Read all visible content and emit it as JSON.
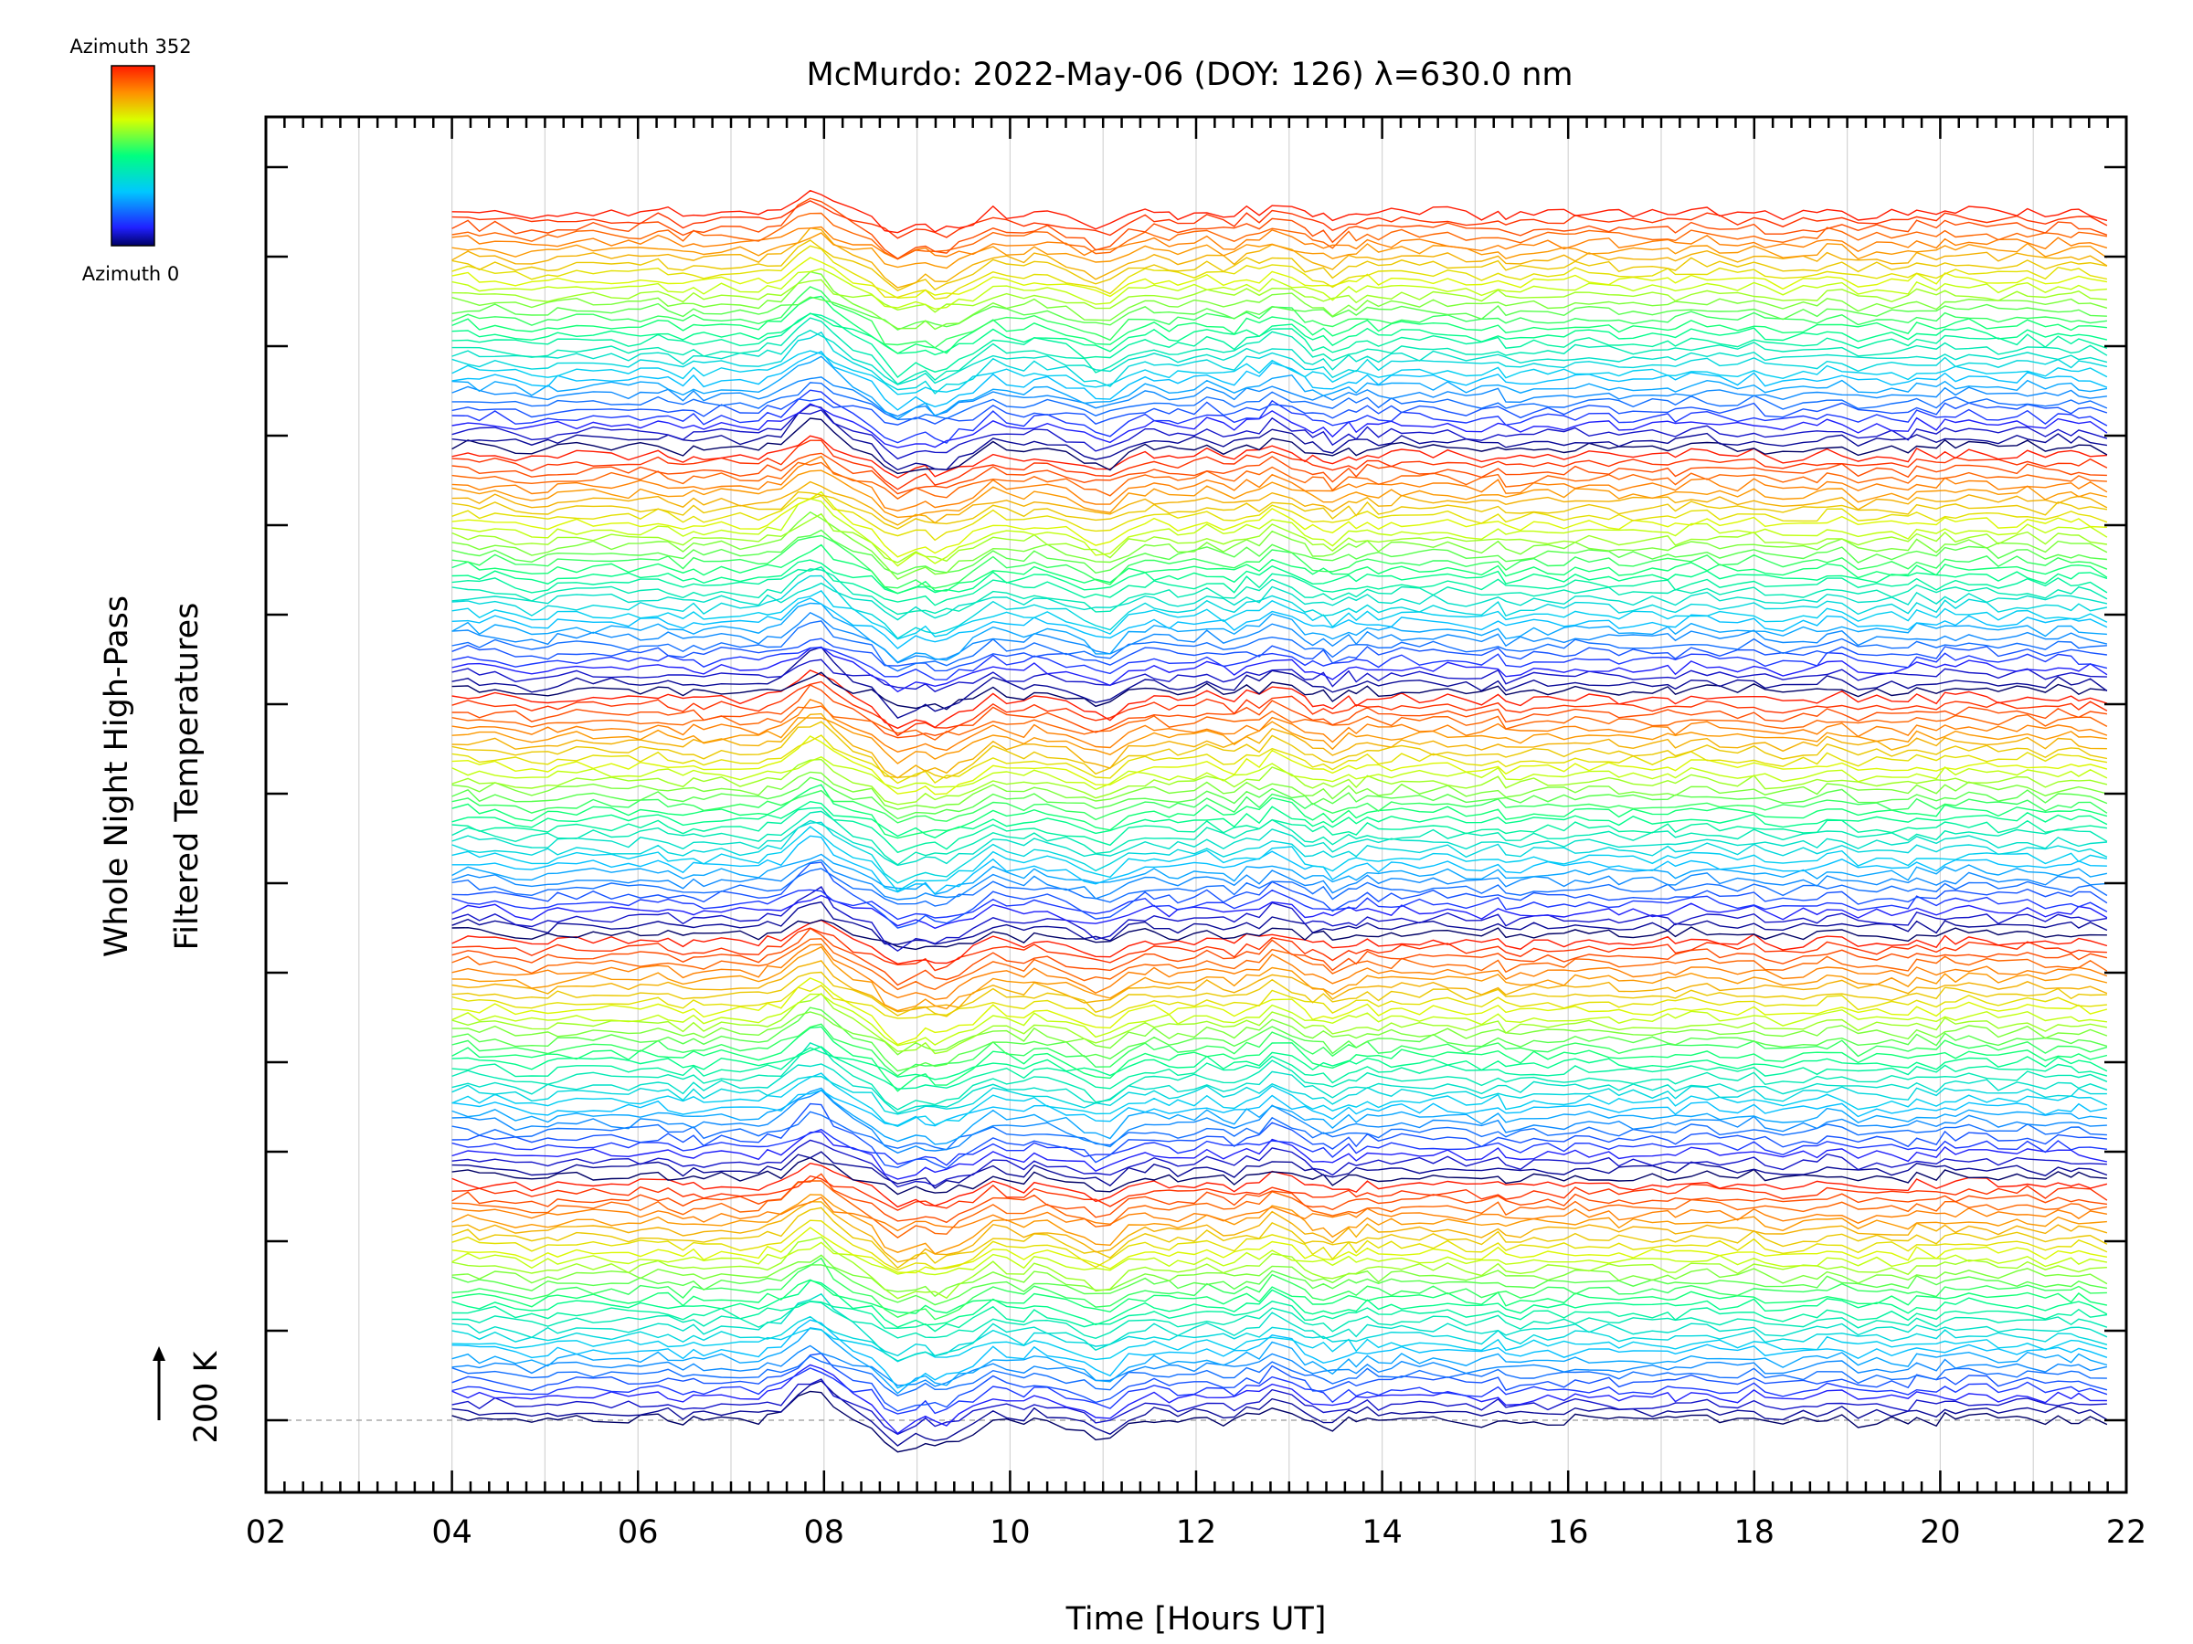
{
  "chart_data": {
    "type": "line",
    "title": "McMurdo: 2022-May-06 (DOY: 126) λ=630.0 nm",
    "xlabel": "Time [Hours UT]",
    "ylabel_line1": "Whole Night High-Pass",
    "ylabel_line2": "Filtered Temperatures",
    "scale_marker_label": "200 K",
    "xlim": [
      2,
      22
    ],
    "x_tick_labels": [
      "02",
      "04",
      "06",
      "08",
      "10",
      "12",
      "14",
      "16",
      "18",
      "20",
      "22"
    ],
    "x_tick_values": [
      2,
      4,
      6,
      8,
      10,
      12,
      14,
      16,
      18,
      20,
      22
    ],
    "data_start_hour": 4,
    "data_end_hour": 21.8,
    "series_count": 160,
    "series_per_scan": 32,
    "baseline_dashed": true,
    "grid": "vertical-only",
    "colorbar": {
      "top_label": "Azimuth 352",
      "bottom_label": "Azimuth 0",
      "min": 0,
      "max": 352,
      "colormap": "rainbow"
    },
    "disturbance_events": [
      {
        "hour": 7.9,
        "amplitude": 1.0
      },
      {
        "hour": 8.8,
        "amplitude": -0.9
      },
      {
        "hour": 9.3,
        "amplitude": -0.7
      },
      {
        "hour": 11.0,
        "amplitude": -0.5
      },
      {
        "hour": 13.0,
        "amplitude": 0.5
      },
      {
        "hour": 13.3,
        "amplitude": -0.4
      }
    ]
  }
}
